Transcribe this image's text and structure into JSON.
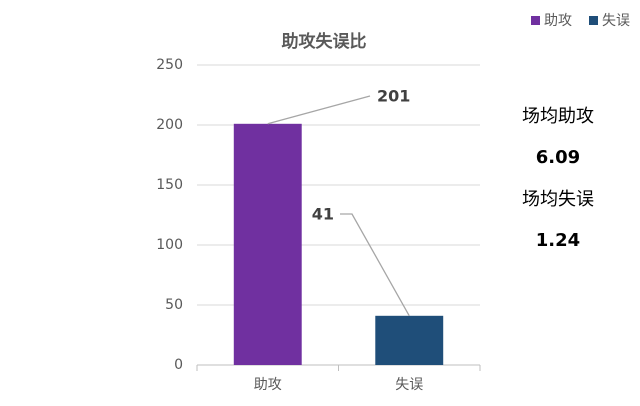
{
  "chart_data": {
    "type": "bar",
    "title": "助攻失误比",
    "categories": [
      "助攻",
      "失误"
    ],
    "values": [
      201,
      41
    ],
    "colors": [
      "#7030a0",
      "#1f4e79"
    ],
    "ylim": [
      0,
      250
    ],
    "yticks": [
      0,
      50,
      100,
      150,
      200,
      250
    ],
    "grid": true,
    "legend": "top-right"
  },
  "stats": [
    {
      "label": "场均助攻",
      "value": 6.09
    },
    {
      "label": "场均失误",
      "value": 1.24
    }
  ]
}
